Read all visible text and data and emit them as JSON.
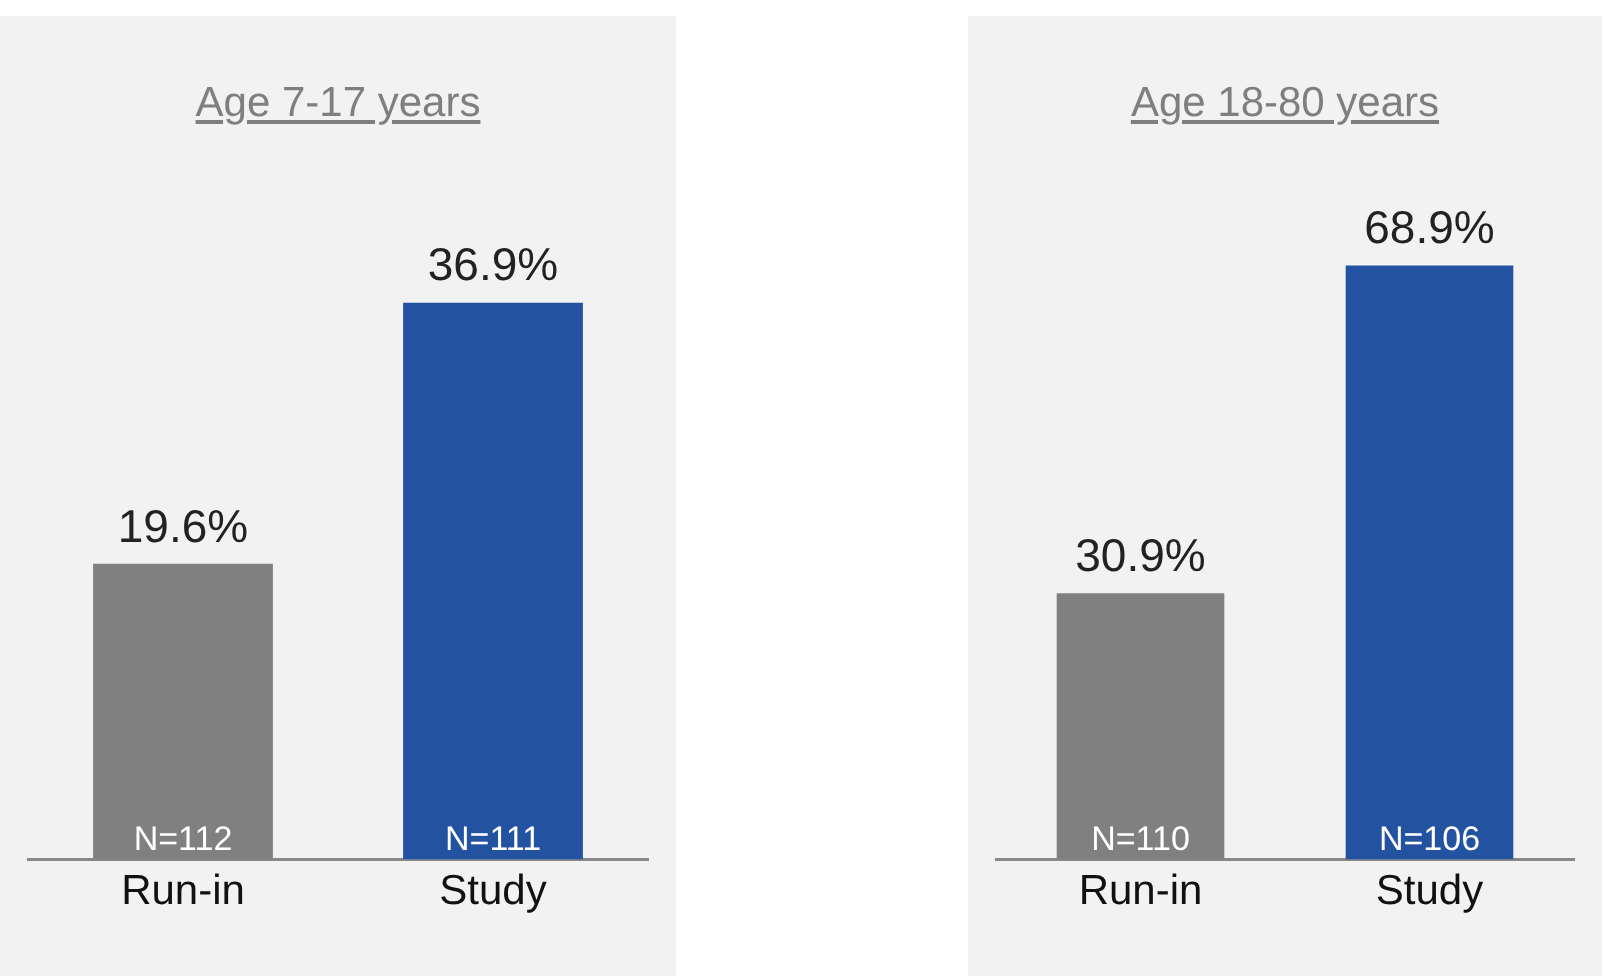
{
  "chart_data": [
    {
      "type": "bar",
      "title": "Age 7-17 years",
      "categories": [
        "Run-in",
        "Study"
      ],
      "values": [
        19.6,
        36.9
      ],
      "colors": [
        "#808080",
        "#2352a0"
      ],
      "value_labels": [
        "19.6%",
        "36.9%"
      ],
      "annotations": [
        {
          "text": "N=112",
          "x": "Run-in",
          "y": 0
        },
        {
          "text": "N=111",
          "x": "Study",
          "y": 0
        }
      ],
      "grid": false,
      "legend": false,
      "tick_labels": "x"
    },
    {
      "type": "bar",
      "title": "Age 18-80 years",
      "categories": [
        "Run-in",
        "Study"
      ],
      "values": [
        30.9,
        68.9
      ],
      "colors": [
        "#808080",
        "#2352a0"
      ],
      "value_labels": [
        "30.9%",
        "68.9%"
      ],
      "annotations": [
        {
          "text": "N=110",
          "x": "Run-in",
          "y": 0
        },
        {
          "text": "N=106",
          "x": "Study",
          "y": 0
        }
      ],
      "grid": false,
      "legend": false,
      "tick_labels": "x"
    }
  ]
}
